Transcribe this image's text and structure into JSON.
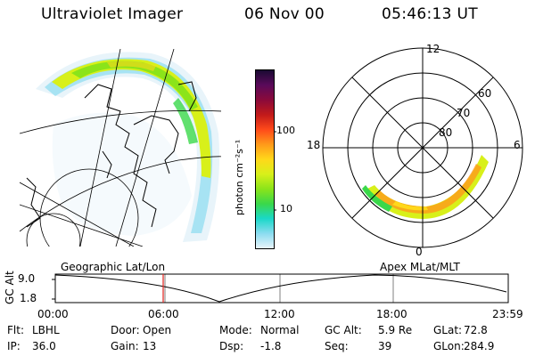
{
  "header": {
    "title": "Ultraviolet Imager",
    "date": "06 Nov 00",
    "time": "05:46:13 UT"
  },
  "colorbar": {
    "unit_label": "photon cm⁻²s⁻¹",
    "tick_labels": [
      "100",
      "10"
    ],
    "colors": [
      "#1a0a33",
      "#5a0a5a",
      "#8b0a3a",
      "#c21a1a",
      "#ff4a1a",
      "#ff9a1a",
      "#ffd81a",
      "#d8f01a",
      "#8be41a",
      "#3ad84a",
      "#1ad8c8",
      "#8bdcf0",
      "#e8f4fa"
    ]
  },
  "polar": {
    "mlt_labels": {
      "top": "12",
      "left": "18",
      "right": "6",
      "bottom": "0"
    },
    "lat_labels": [
      "60",
      "70",
      "80"
    ]
  },
  "altitude_panel": {
    "left_title": "Geographic Lat/Lon",
    "right_title": "Apex MLat/MLT",
    "ylabel": "GC Alt",
    "y_ticks": [
      "9.0",
      "1.8"
    ],
    "x_ticks": [
      "00:00",
      "06:00",
      "12:00",
      "18:00",
      "23:59"
    ],
    "marker_color": "#e0201a"
  },
  "info": [
    [
      {
        "k": "Flt:",
        "v": "LBHL"
      },
      {
        "k": "Door:",
        "v": "Open"
      },
      {
        "k": "Mode:",
        "v": "Normal"
      },
      {
        "k": "GC Alt:",
        "v": "5.9 Re"
      },
      {
        "k": "GLat:",
        "v": "72.8"
      }
    ],
    [
      {
        "k": "IP:",
        "v": "36.0"
      },
      {
        "k": "Gain:",
        "v": "13"
      },
      {
        "k": "Dsp:",
        "v": "-1.8"
      },
      {
        "k": "Seq:",
        "v": "39"
      },
      {
        "k": "GLon:",
        "v": "284.9"
      }
    ]
  ]
}
